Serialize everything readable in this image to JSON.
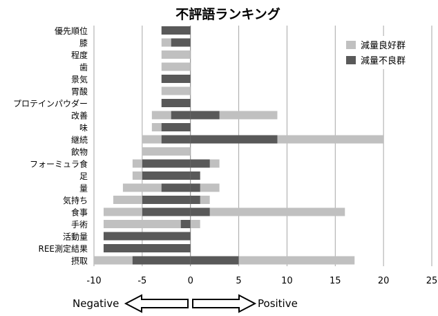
{
  "chart_data": {
    "type": "bar",
    "title": "不評語ランキング",
    "categories": [
      "優先順位",
      "膝",
      "程度",
      "歯",
      "景気",
      "胃酸",
      "プロテインパウダー",
      "改善",
      "味",
      "継続",
      "飲物",
      "フォーミュラ食",
      "足",
      "量",
      "気持ち",
      "食事",
      "手術",
      "活動量",
      "REE測定結果",
      "摂取"
    ],
    "series": [
      {
        "name": "減量良好群",
        "color": "#c0c0c0",
        "negative": [
          -3,
          -3,
          -3,
          -3,
          -3,
          -3,
          -3,
          -4,
          -4,
          -5,
          -5,
          -6,
          -6,
          -7,
          -8,
          -9,
          -9,
          -9,
          -9,
          -10
        ],
        "positive": [
          0,
          0,
          0,
          0,
          0,
          0,
          0,
          9,
          0,
          20,
          0,
          3,
          1,
          3,
          2,
          16,
          1,
          0,
          0,
          17
        ]
      },
      {
        "name": "減量不良群",
        "color": "#595959",
        "negative": [
          -3,
          -2,
          0,
          0,
          -3,
          0,
          -3,
          -2,
          -3,
          -3,
          0,
          -5,
          -5,
          -3,
          -5,
          -5,
          -1,
          -9,
          -9,
          -6
        ],
        "positive": [
          0,
          0,
          0,
          0,
          0,
          0,
          0,
          3,
          0,
          9,
          0,
          2,
          1,
          1,
          1,
          2,
          0,
          0,
          0,
          5
        ]
      }
    ],
    "xlim": [
      -10,
      25
    ],
    "xticks": [
      "-10",
      "-5",
      "0",
      "5",
      "10",
      "15",
      "20",
      "25"
    ],
    "grid": "vertical",
    "legend_position": "top-right"
  },
  "annotations": {
    "negative_label": "Negative",
    "positive_label": "Positive"
  }
}
